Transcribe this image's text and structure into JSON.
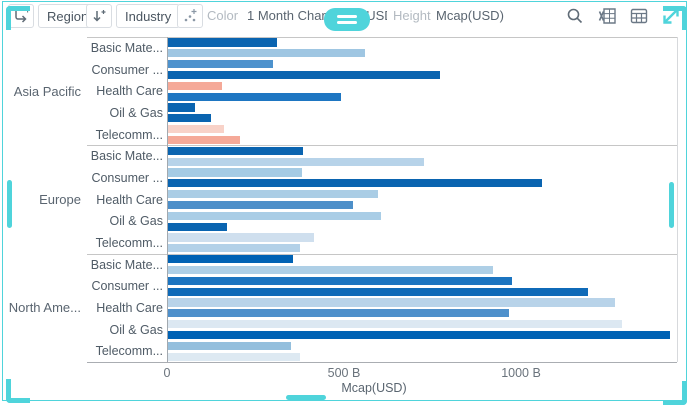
{
  "accent_color": "#4fd4db",
  "toolbar": {
    "region_label": "Region",
    "industry_label": "Industry",
    "color_label": "Color",
    "color_value": "1 Month Change % (USD)",
    "height_label": "Height",
    "height_value": "Mcap(USD)"
  },
  "icons": {
    "breakdown_add": "arrow-right-with-plus",
    "sort_add": "arrow-down-with-plus",
    "visual_add": "dots-with-plus",
    "menu_pill": "hamburger-lines",
    "search": "magnifier",
    "export_excel": "spreadsheet-document",
    "data_table": "grid-table",
    "maximize": "teal-diagonal-arrows"
  },
  "chart_data": {
    "type": "bar",
    "orientation": "horizontal",
    "title": "",
    "xlabel": "Mcap(USD)",
    "color_legend": "1 Month Change % (USD)",
    "x_ticks": [
      {
        "value_b": 0,
        "label": "0"
      },
      {
        "value_b": 500,
        "label": "500 B"
      },
      {
        "value_b": 1000,
        "label": "1000 B"
      }
    ],
    "x_max_b": 1440,
    "grid": false,
    "groups": [
      {
        "region": "Asia Pacific",
        "industries": [
          {
            "label": "Basic Mate...",
            "bars": [
              {
                "value_b": 310,
                "color": "#0a64b0"
              },
              {
                "value_b": 560,
                "color": "#9fc6e2"
              }
            ]
          },
          {
            "label": "Consumer ...",
            "bars": [
              {
                "value_b": 300,
                "color": "#4d92cd"
              },
              {
                "value_b": 770,
                "color": "#0a64b0"
              }
            ]
          },
          {
            "label": "Health Care",
            "bars": [
              {
                "value_b": 155,
                "color": "#f5a998"
              },
              {
                "value_b": 490,
                "color": "#1e76c2"
              }
            ]
          },
          {
            "label": "Oil & Gas",
            "bars": [
              {
                "value_b": 80,
                "color": "#0a64b0"
              },
              {
                "value_b": 125,
                "color": "#0a64b0"
              }
            ]
          },
          {
            "label": "Telecomm...",
            "bars": [
              {
                "value_b": 160,
                "color": "#f8d2c8"
              },
              {
                "value_b": 205,
                "color": "#f5a998"
              }
            ]
          }
        ]
      },
      {
        "region": "Europe",
        "industries": [
          {
            "label": "Basic Mate...",
            "bars": [
              {
                "value_b": 385,
                "color": "#0a64b0"
              },
              {
                "value_b": 725,
                "color": "#b7d3e9"
              }
            ]
          },
          {
            "label": "Consumer ...",
            "bars": [
              {
                "value_b": 380,
                "color": "#a5cbe4"
              },
              {
                "value_b": 1060,
                "color": "#0a64b0"
              }
            ]
          },
          {
            "label": "Health Care",
            "bars": [
              {
                "value_b": 595,
                "color": "#aacde5"
              },
              {
                "value_b": 525,
                "color": "#4d8fc9"
              }
            ]
          },
          {
            "label": "Oil & Gas",
            "bars": [
              {
                "value_b": 605,
                "color": "#a9cde6"
              },
              {
                "value_b": 170,
                "color": "#0a64b0"
              }
            ]
          },
          {
            "label": "Telecomm...",
            "bars": [
              {
                "value_b": 415,
                "color": "#cfdfee"
              },
              {
                "value_b": 375,
                "color": "#b3d1e8"
              }
            ]
          }
        ]
      },
      {
        "region": "North Ame...",
        "industries": [
          {
            "label": "Basic Mate...",
            "bars": [
              {
                "value_b": 355,
                "color": "#0062b4"
              },
              {
                "value_b": 920,
                "color": "#aecfe6"
              }
            ]
          },
          {
            "label": "Consumer ...",
            "bars": [
              {
                "value_b": 975,
                "color": "#1b74c0"
              },
              {
                "value_b": 1190,
                "color": "#0f6ab8"
              }
            ]
          },
          {
            "label": "Health Care",
            "bars": [
              {
                "value_b": 1265,
                "color": "#b8d3e9"
              },
              {
                "value_b": 965,
                "color": "#4e90cb"
              }
            ]
          },
          {
            "label": "Oil & Gas",
            "bars": [
              {
                "value_b": 1285,
                "color": "#dce8f2"
              },
              {
                "value_b": 1420,
                "color": "#0062b4"
              }
            ]
          },
          {
            "label": "Telecomm...",
            "bars": [
              {
                "value_b": 350,
                "color": "#94bfdd"
              },
              {
                "value_b": 375,
                "color": "#dde9f2"
              }
            ]
          }
        ]
      }
    ]
  }
}
